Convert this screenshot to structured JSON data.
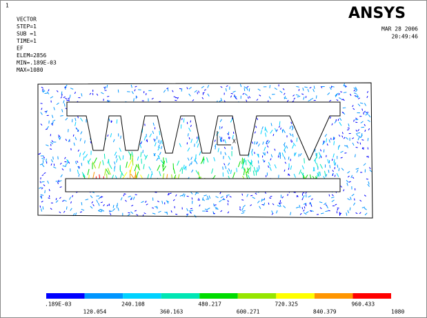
{
  "window_number": "1",
  "header": {
    "lines": [
      "VECTOR",
      "STEP=1",
      "SUB =1",
      "TIME=1",
      "EF",
      "ELEM=2856",
      "MIN=.189E-03",
      "MAX=1080"
    ]
  },
  "logo": "ANSYS",
  "date": "MAR 28 2006",
  "time": "20:49:46",
  "triad_label": "X",
  "legend": {
    "colors": [
      "#0000ff",
      "#0096ff",
      "#00d2ff",
      "#00e6b4",
      "#00dc00",
      "#96e600",
      "#ffff00",
      "#ff9600",
      "#ff0000"
    ],
    "labels": [
      ".189E-03",
      "120.054",
      "240.108",
      "360.163",
      "480.217",
      "600.271",
      "720.325",
      "840.379",
      "960.433",
      "1080"
    ]
  }
}
